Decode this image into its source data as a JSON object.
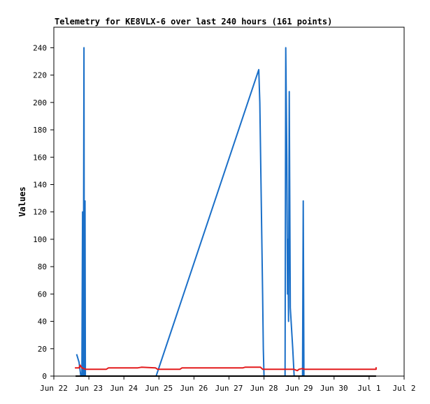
{
  "chart_data": {
    "type": "line",
    "title": "Telemetry for KE8VLX-6 over last 240 hours (161 points)",
    "xlabel": "",
    "ylabel": "Values",
    "xlim": [
      0,
      10
    ],
    "ylim": [
      0,
      255
    ],
    "x_ticks": [
      {
        "value": 0,
        "label": "Jun 22"
      },
      {
        "value": 1,
        "label": "Jun 23"
      },
      {
        "value": 2,
        "label": "Jun 24"
      },
      {
        "value": 3,
        "label": "Jun 25"
      },
      {
        "value": 4,
        "label": "Jun 26"
      },
      {
        "value": 5,
        "label": "Jun 27"
      },
      {
        "value": 6,
        "label": "Jun 28"
      },
      {
        "value": 7,
        "label": "Jun 29"
      },
      {
        "value": 8,
        "label": "Jun 30"
      },
      {
        "value": 9,
        "label": "Jul 1"
      },
      {
        "value": 10,
        "label": "Jul 2"
      }
    ],
    "y_ticks": [
      0,
      20,
      40,
      60,
      80,
      100,
      120,
      140,
      160,
      180,
      200,
      220,
      240
    ],
    "grid": false,
    "legend": "none",
    "series": [
      {
        "color": "#1a6fc8",
        "points": [
          [
            0.65,
            16
          ],
          [
            0.72,
            10
          ],
          [
            0.77,
            0
          ],
          [
            0.8,
            0
          ],
          [
            0.82,
            120
          ],
          [
            0.84,
            0
          ],
          [
            0.86,
            240
          ],
          [
            0.87,
            0
          ],
          [
            0.89,
            128
          ],
          [
            0.9,
            0
          ],
          [
            2.92,
            0
          ],
          [
            5.85,
            224
          ],
          [
            5.88,
            200
          ],
          [
            5.92,
            130
          ],
          [
            5.96,
            60
          ],
          [
            5.98,
            20
          ],
          [
            6.0,
            0
          ],
          [
            6.6,
            0
          ],
          [
            6.62,
            240
          ],
          [
            6.65,
            160
          ],
          [
            6.67,
            60
          ],
          [
            6.68,
            100
          ],
          [
            6.7,
            40
          ],
          [
            6.72,
            208
          ],
          [
            6.75,
            50
          ],
          [
            6.82,
            20
          ],
          [
            6.86,
            0
          ],
          [
            7.1,
            0
          ],
          [
            7.12,
            128
          ],
          [
            7.14,
            0
          ]
        ]
      },
      {
        "color": "#e31a1c",
        "points": [
          [
            0.6,
            6
          ],
          [
            0.72,
            6
          ],
          [
            0.75,
            8
          ],
          [
            0.8,
            6
          ],
          [
            0.9,
            5
          ],
          [
            1.0,
            5
          ],
          [
            1.5,
            5
          ],
          [
            1.56,
            6
          ],
          [
            2.4,
            6
          ],
          [
            2.5,
            6.5
          ],
          [
            2.9,
            6
          ],
          [
            2.96,
            5
          ],
          [
            3.6,
            5
          ],
          [
            3.66,
            6
          ],
          [
            5.4,
            6
          ],
          [
            5.46,
            6.5
          ],
          [
            5.9,
            6.5
          ],
          [
            5.96,
            5
          ],
          [
            6.85,
            5
          ],
          [
            6.95,
            4
          ],
          [
            7.0,
            5
          ],
          [
            7.1,
            5.5
          ],
          [
            7.15,
            5
          ],
          [
            8.0,
            5
          ],
          [
            9.2,
            5
          ],
          [
            9.2,
            6.5
          ]
        ]
      },
      {
        "color": "#000000",
        "points": [
          [
            0.62,
            0
          ],
          [
            9.2,
            0
          ]
        ]
      }
    ]
  }
}
